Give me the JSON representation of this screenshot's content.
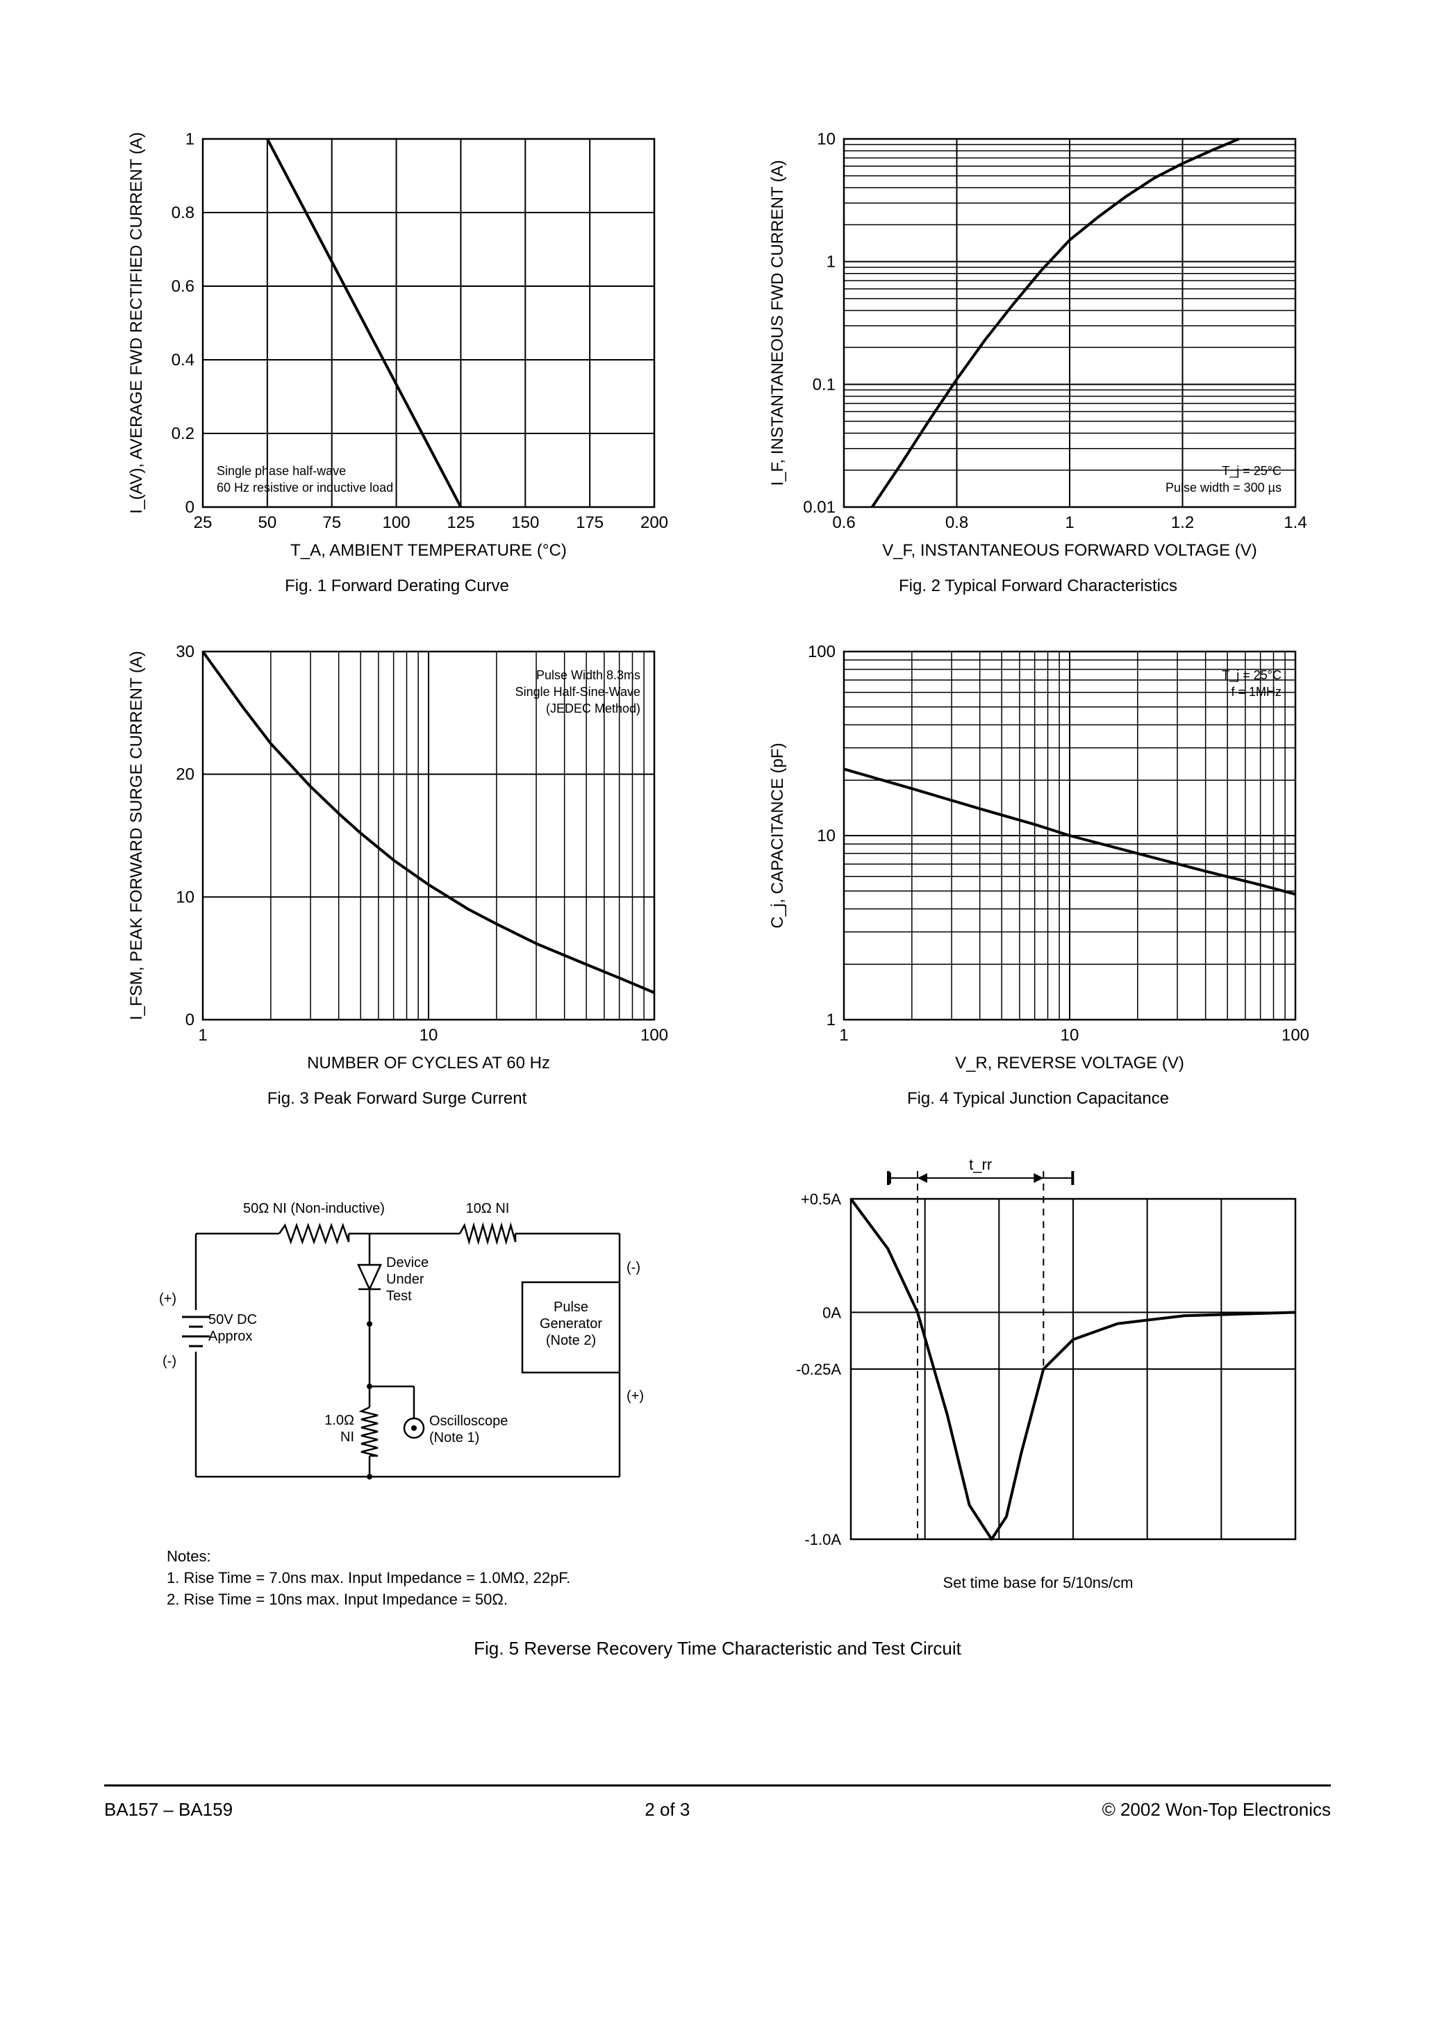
{
  "footer": {
    "left": "BA157 – BA159",
    "center": "2 of 3",
    "right": "© 2002 Won-Top Electronics"
  },
  "fig1": {
    "type": "line",
    "caption": "Fig. 1  Forward Derating Curve",
    "xlabel": "T_A, AMBIENT TEMPERATURE (°C)",
    "ylabel": "I_(AV), AVERAGE FWD RECTIFIED CURRENT (A)",
    "xlim": [
      25,
      200
    ],
    "ylim": [
      0,
      1.0
    ],
    "xticks": [
      25,
      50,
      75,
      100,
      125,
      150,
      175,
      200
    ],
    "yticks": [
      0,
      0.2,
      0.4,
      0.6,
      0.8,
      1.0
    ],
    "xscale": "linear",
    "yscale": "linear",
    "note_lines": [
      "Single phase half-wave",
      "60 Hz resistive or inductive load"
    ],
    "series": [
      {
        "points": [
          [
            50,
            1.0
          ],
          [
            125,
            0.0
          ]
        ]
      }
    ],
    "line_width": 4,
    "line_color": "#000000",
    "grid_color": "#000000",
    "background_color": "#ffffff",
    "tick_fontsize": 24,
    "label_fontsize": 24,
    "note_fontsize": 18
  },
  "fig2": {
    "type": "line",
    "caption": "Fig. 2  Typical Forward Characteristics",
    "xlabel": "V_F, INSTANTANEOUS FORWARD VOLTAGE (V)",
    "ylabel": "I_F, INSTANTANEOUS FWD CURRENT (A)",
    "xlim": [
      0.6,
      1.4
    ],
    "ylim": [
      0.01,
      10
    ],
    "xticks": [
      0.6,
      0.8,
      1.0,
      1.2,
      1.4
    ],
    "yticks": [
      0.01,
      0.1,
      1.0,
      10
    ],
    "xscale": "linear",
    "yscale": "log",
    "note_lines": [
      "T_j = 25°C",
      "Pulse width = 300 µs"
    ],
    "series": [
      {
        "points": [
          [
            0.65,
            0.01
          ],
          [
            0.7,
            0.022
          ],
          [
            0.75,
            0.05
          ],
          [
            0.8,
            0.11
          ],
          [
            0.85,
            0.23
          ],
          [
            0.9,
            0.45
          ],
          [
            0.95,
            0.85
          ],
          [
            1.0,
            1.5
          ],
          [
            1.05,
            2.3
          ],
          [
            1.1,
            3.4
          ],
          [
            1.15,
            4.8
          ],
          [
            1.2,
            6.3
          ],
          [
            1.25,
            8.0
          ],
          [
            1.3,
            10.0
          ]
        ]
      }
    ],
    "line_width": 4,
    "line_color": "#000000",
    "grid_color": "#000000",
    "background_color": "#ffffff",
    "tick_fontsize": 24,
    "label_fontsize": 24,
    "note_fontsize": 18
  },
  "fig3": {
    "type": "line",
    "caption": "Fig. 3  Peak Forward Surge Current",
    "xlabel": "NUMBER OF CYCLES AT 60 Hz",
    "ylabel": "I_FSM, PEAK FORWARD SURGE CURRENT (A)",
    "xlim": [
      1,
      100
    ],
    "ylim": [
      0,
      30
    ],
    "xticks": [
      1,
      10,
      100
    ],
    "yticks": [
      0,
      10,
      20,
      30
    ],
    "xscale": "log",
    "yscale": "linear",
    "note_lines": [
      "Pulse Width 8.3ms",
      "Single Half-Sine-Wave",
      "(JEDEC Method)"
    ],
    "series": [
      {
        "points": [
          [
            1,
            30
          ],
          [
            1.5,
            25.5
          ],
          [
            2,
            22.5
          ],
          [
            3,
            19
          ],
          [
            4,
            16.8
          ],
          [
            5,
            15.2
          ],
          [
            7,
            13
          ],
          [
            10,
            11
          ],
          [
            15,
            9
          ],
          [
            20,
            7.8
          ],
          [
            30,
            6.2
          ],
          [
            50,
            4.5
          ],
          [
            70,
            3.4
          ],
          [
            100,
            2.2
          ]
        ]
      }
    ],
    "line_width": 4,
    "line_color": "#000000",
    "grid_color": "#000000",
    "background_color": "#ffffff",
    "tick_fontsize": 24,
    "label_fontsize": 24,
    "note_fontsize": 18
  },
  "fig4": {
    "type": "line",
    "caption": "Fig. 4  Typical Junction Capacitance",
    "xlabel": "V_R, REVERSE VOLTAGE (V)",
    "ylabel": "C_j, CAPACITANCE (pF)",
    "xlim": [
      1,
      100
    ],
    "ylim": [
      1,
      100
    ],
    "xticks": [
      1,
      10,
      100
    ],
    "yticks": [
      1,
      10,
      100
    ],
    "xscale": "log",
    "yscale": "log",
    "note_lines": [
      "T_j = 25°C",
      "f = 1MHz"
    ],
    "series": [
      {
        "points": [
          [
            1,
            23
          ],
          [
            2,
            18
          ],
          [
            4,
            14
          ],
          [
            7,
            11.5
          ],
          [
            10,
            10
          ],
          [
            20,
            8
          ],
          [
            40,
            6.4
          ],
          [
            70,
            5.4
          ],
          [
            100,
            4.8
          ]
        ]
      }
    ],
    "line_width": 4,
    "line_color": "#000000",
    "grid_color": "#000000",
    "background_color": "#ffffff",
    "tick_fontsize": 24,
    "label_fontsize": 24,
    "note_fontsize": 18
  },
  "fig5": {
    "caption": "Fig. 5  Reverse Recovery Time Characteristic and Test Circuit",
    "circuit": {
      "r1_label": "50Ω NI (Non-inductive)",
      "r2_label": "10Ω NI",
      "r3_label": "1.0Ω\nNI",
      "dut_label": "Device\nUnder\nTest",
      "source_label": "50V DC\nApprox",
      "scope_label": "Oscilloscope\n(Note 1)",
      "pg_label": "Pulse\nGenerator\n(Note 2)",
      "plus": "(+)",
      "minus": "(-)"
    },
    "notes": {
      "heading": "Notes:",
      "n1": "1. Rise Time = 7.0ns max. Input Impedance = 1.0MΩ, 22pF.",
      "n2": "2. Rise Time = 10ns max. Input Impedance = 50Ω."
    },
    "waveform": {
      "ylabels": [
        "+0.5A",
        "0A",
        "-0.25A",
        "-1.0A"
      ],
      "yvalues": [
        0.5,
        0,
        -0.25,
        -1.0
      ],
      "ylim": [
        -1.0,
        0.5
      ],
      "xgrid_cols": 6,
      "trr_label": "t_rr",
      "sub_caption": "Set time base for 5/10ns/cm",
      "t_zero": 0.9,
      "t_peak": 1.9,
      "t_recover": 2.6,
      "series": [
        {
          "points": [
            [
              0.0,
              0.5
            ],
            [
              0.5,
              0.28
            ],
            [
              0.9,
              0.0
            ],
            [
              1.3,
              -0.45
            ],
            [
              1.6,
              -0.85
            ],
            [
              1.9,
              -1.0
            ],
            [
              2.1,
              -0.9
            ],
            [
              2.3,
              -0.62
            ],
            [
              2.6,
              -0.25
            ],
            [
              3.0,
              -0.12
            ],
            [
              3.6,
              -0.05
            ],
            [
              4.5,
              -0.015
            ],
            [
              6.0,
              0.0
            ]
          ]
        }
      ],
      "line_width": 4,
      "line_color": "#000000",
      "grid_color": "#000000",
      "background_color": "#ffffff",
      "tick_fontsize": 22
    }
  }
}
